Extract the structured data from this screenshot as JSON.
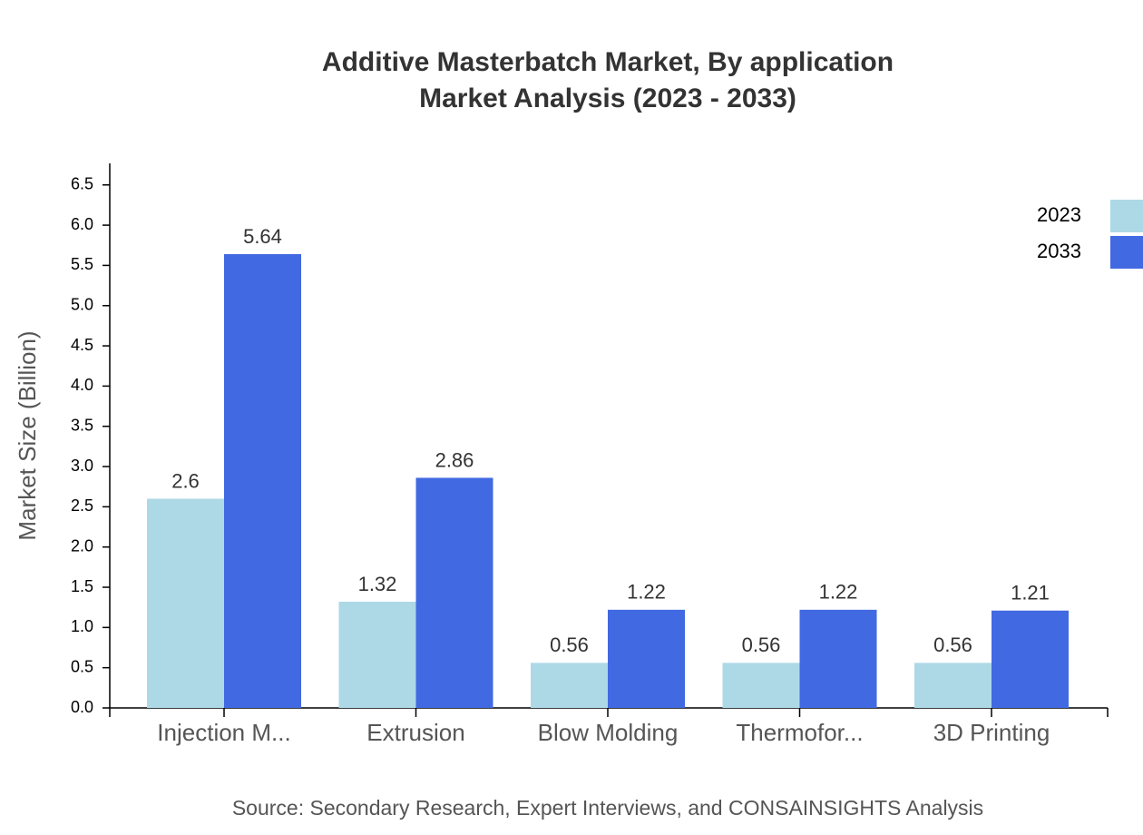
{
  "chart_data": {
    "type": "bar",
    "title": "Additive Masterbatch Market, By application",
    "subtitle": "Market Analysis (2023 - 2033)",
    "y_label": "Market Size (Billion)",
    "source": "Source: Secondary Research, Expert Interviews, and CONSAINSIGHTS Analysis",
    "categories": [
      "Injection M...",
      "Extrusion",
      "Blow Molding",
      "Thermofor...",
      "3D Printing"
    ],
    "series": [
      {
        "name": "2023",
        "color": "#add8e6",
        "values": [
          2.6,
          1.32,
          0.56,
          0.56,
          0.56
        ]
      },
      {
        "name": "2033",
        "color": "#4169e1",
        "values": [
          5.64,
          2.86,
          1.22,
          1.22,
          1.21
        ]
      }
    ],
    "ylim": [
      0,
      6.768
    ],
    "yticks": [
      {
        "value": 0,
        "label": "0.0"
      },
      0.5,
      {
        "value": 1,
        "label": "1.0"
      },
      1.5,
      {
        "value": 2,
        "label": "2.0"
      },
      2.5,
      {
        "value": 3,
        "label": "3.0"
      },
      3.5,
      {
        "value": 4,
        "label": "4.0"
      },
      4.5,
      {
        "value": 5,
        "label": "5.0"
      },
      5.5,
      {
        "value": 6,
        "label": "6.0"
      },
      6.5
    ],
    "grid": false,
    "legend": "top-right"
  }
}
